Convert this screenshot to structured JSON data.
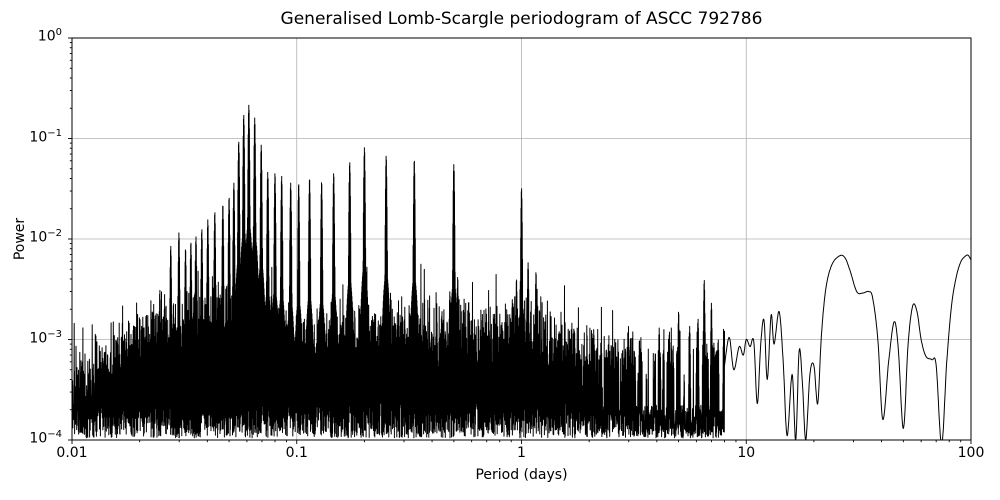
{
  "chart_data": {
    "type": "line",
    "title": "Generalised Lomb-Scargle periodogram of ASCC 792786",
    "xlabel": "Period (days)",
    "ylabel": "Power",
    "xscale": "log",
    "yscale": "log",
    "xlim": [
      0.01,
      100
    ],
    "ylim": [
      0.0001,
      1.0
    ],
    "x_tick_values": [
      0.01,
      0.1,
      1,
      10,
      100
    ],
    "x_tick_labels": [
      "0.01",
      "0.1",
      "1",
      "10",
      "100"
    ],
    "y_tick_exponents": [
      "0",
      "−1",
      "−2",
      "−3",
      "−4"
    ],
    "grid": true,
    "legend": null,
    "line_color": "#000000",
    "grid_color": "#b0b0b0",
    "background_color": "#ffffff",
    "main_peaks": [
      [
        0.0206,
        0.0013
      ],
      [
        0.0225,
        0.0016
      ],
      [
        0.0246,
        0.0031
      ],
      [
        0.0262,
        0.0022
      ],
      [
        0.0275,
        0.0085
      ],
      [
        0.0299,
        0.0115
      ],
      [
        0.032,
        0.008
      ],
      [
        0.0338,
        0.0093
      ],
      [
        0.0356,
        0.0105
      ],
      [
        0.0378,
        0.0125
      ],
      [
        0.0402,
        0.0155
      ],
      [
        0.0432,
        0.0185
      ],
      [
        0.0469,
        0.022
      ],
      [
        0.05,
        0.026
      ],
      [
        0.0525,
        0.036
      ],
      [
        0.0552,
        0.093
      ],
      [
        0.0581,
        0.171
      ],
      [
        0.0612,
        0.215
      ],
      [
        0.065,
        0.16
      ],
      [
        0.0695,
        0.086
      ],
      [
        0.0743,
        0.046
      ],
      [
        0.08,
        0.045
      ],
      [
        0.0857,
        0.042
      ],
      [
        0.094,
        0.036
      ],
      [
        0.102,
        0.0355
      ],
      [
        0.114,
        0.04
      ],
      [
        0.129,
        0.037
      ],
      [
        0.146,
        0.045
      ],
      [
        0.172,
        0.058
      ],
      [
        0.2,
        0.081
      ],
      [
        0.25,
        0.067
      ],
      [
        0.3333,
        0.061
      ],
      [
        0.48,
        0.003
      ],
      [
        0.5,
        0.055
      ],
      [
        0.52,
        0.0042
      ],
      [
        0.91,
        0.0025
      ],
      [
        0.95,
        0.004
      ],
      [
        1.0,
        0.032
      ],
      [
        1.07,
        0.0058
      ],
      [
        1.16,
        0.0047
      ],
      [
        2.1,
        0.0011
      ],
      [
        2.55,
        0.00085
      ],
      [
        3.05,
        0.001
      ],
      [
        3.35,
        0.001
      ],
      [
        4.1,
        0.0013
      ],
      [
        4.55,
        0.0012
      ],
      [
        5.0,
        0.0019
      ],
      [
        5.6,
        0.00135
      ],
      [
        6.1,
        0.0016
      ],
      [
        6.5,
        0.0039
      ],
      [
        7.0,
        0.0023
      ],
      [
        7.5,
        0.001
      ]
    ],
    "noise_envelope": [
      [
        0.01,
        0.00032
      ],
      [
        0.013,
        0.00045
      ],
      [
        0.017,
        0.0007
      ],
      [
        0.022,
        0.001
      ],
      [
        0.03,
        0.0013
      ],
      [
        0.045,
        0.0014
      ],
      [
        0.065,
        0.0015
      ],
      [
        0.08,
        0.0011
      ],
      [
        0.1,
        0.00095
      ],
      [
        0.15,
        0.001
      ],
      [
        0.2,
        0.00105
      ],
      [
        0.3,
        0.001
      ],
      [
        0.5,
        0.00105
      ],
      [
        0.7,
        0.0009
      ],
      [
        1.0,
        0.0013
      ],
      [
        1.4,
        0.0008
      ],
      [
        2.0,
        0.0006
      ],
      [
        3.0,
        0.0005
      ],
      [
        5.0,
        0.00052
      ],
      [
        8.0,
        0.00055
      ]
    ],
    "smooth_tail": [
      [
        8.0,
        0.00055
      ],
      [
        8.4,
        0.00105
      ],
      [
        8.8,
        0.0005
      ],
      [
        9.3,
        0.00085
      ],
      [
        9.7,
        0.0007
      ],
      [
        10.0,
        0.001
      ],
      [
        10.4,
        0.00085
      ],
      [
        10.8,
        0.00095
      ],
      [
        11.2,
        0.00023
      ],
      [
        11.6,
        0.0009
      ],
      [
        12.0,
        0.00155
      ],
      [
        12.4,
        0.0004
      ],
      [
        12.9,
        0.00175
      ],
      [
        13.3,
        0.0009
      ],
      [
        14.0,
        0.0019
      ],
      [
        14.6,
        0.0006
      ],
      [
        15.2,
        0.00011
      ],
      [
        16.0,
        0.00045
      ],
      [
        16.6,
        0.0001
      ],
      [
        17.2,
        0.00078
      ],
      [
        17.8,
        0.00035
      ],
      [
        18.4,
        0.0001
      ],
      [
        19.2,
        0.00045
      ],
      [
        20.0,
        0.00055
      ],
      [
        20.8,
        0.00023
      ],
      [
        21.6,
        0.0011
      ],
      [
        22.6,
        0.0032
      ],
      [
        24.0,
        0.0055
      ],
      [
        26.0,
        0.0068
      ],
      [
        27.5,
        0.0065
      ],
      [
        29.0,
        0.0048
      ],
      [
        31.0,
        0.003
      ],
      [
        33.0,
        0.0029
      ],
      [
        35.0,
        0.003
      ],
      [
        36.5,
        0.0026
      ],
      [
        38.5,
        0.001
      ],
      [
        40.5,
        0.00016
      ],
      [
        43.0,
        0.0006
      ],
      [
        45.5,
        0.0015
      ],
      [
        47.5,
        0.0008
      ],
      [
        50.0,
        0.00013
      ],
      [
        52.5,
        0.0009
      ],
      [
        55.0,
        0.00215
      ],
      [
        57.5,
        0.0019
      ],
      [
        60.0,
        0.001
      ],
      [
        63.0,
        0.00068
      ],
      [
        67.0,
        0.00063
      ],
      [
        70.0,
        0.00055
      ],
      [
        74.0,
        9e-05
      ],
      [
        78.0,
        0.0006
      ],
      [
        82.0,
        0.0022
      ],
      [
        86.0,
        0.0042
      ],
      [
        90.0,
        0.0059
      ],
      [
        94.0,
        0.0067
      ],
      [
        97.0,
        0.0069
      ],
      [
        100.0,
        0.0062
      ]
    ],
    "spiky_region_end_days": 8.0,
    "noise_bottom": 0.0001
  }
}
